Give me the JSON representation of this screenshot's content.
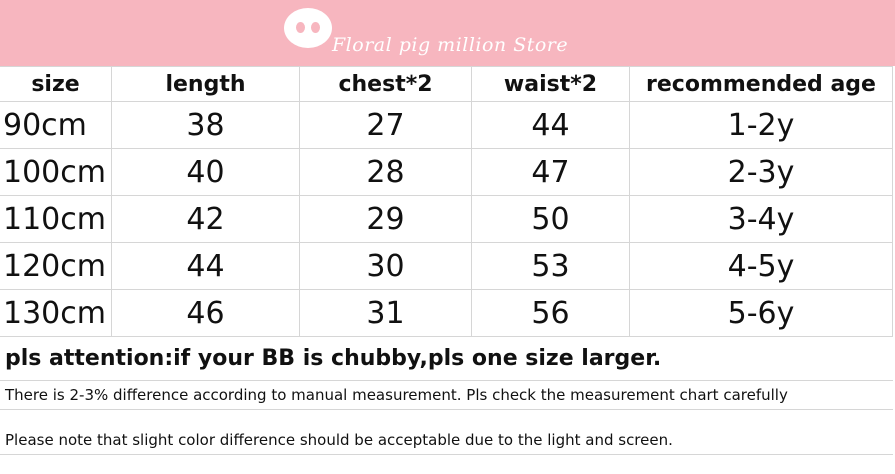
{
  "header": {
    "title": "Floral pig million Store"
  },
  "table": {
    "columns": [
      "size",
      "length",
      "chest*2",
      "waist*2",
      "recommended age"
    ],
    "rows": [
      [
        "90cm",
        38,
        27,
        44,
        "1-2y"
      ],
      [
        "100cm",
        40,
        28,
        47,
        "2-3y"
      ],
      [
        "110cm",
        42,
        29,
        50,
        "3-4y"
      ],
      [
        "120cm",
        44,
        30,
        53,
        "4-5y"
      ],
      [
        "130cm",
        46,
        31,
        56,
        "5-6y"
      ]
    ]
  },
  "notes": [
    "pls attention:if your BB is chubby,pls one size larger.",
    "There is 2-3% difference according to manual measurement. Pls check the measurement chart carefully",
    "Please note that slight color difference should be acceptable due to the light and screen."
  ]
}
